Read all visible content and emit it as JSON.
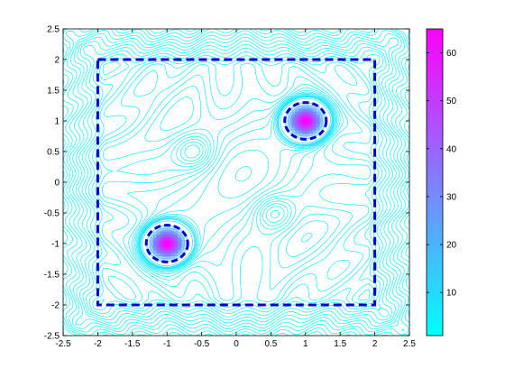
{
  "chart_data": {
    "type": "contour",
    "title": "",
    "xlabel": "",
    "ylabel": "",
    "xlim": [
      -2.5,
      2.5
    ],
    "ylim": [
      -2.5,
      2.5
    ],
    "xticks": [
      "-2.5",
      "-2",
      "-1.5",
      "-1",
      "-0.5",
      "0",
      "0.5",
      "1",
      "1.5",
      "2",
      "2.5"
    ],
    "yticks": [
      "-2.5",
      "-2",
      "-1.5",
      "-1",
      "-0.5",
      "0",
      "0.5",
      "1",
      "1.5",
      "2",
      "2.5"
    ],
    "grid": false,
    "colormap": {
      "low_color": "#00ffff",
      "high_color": "#ff00ff"
    },
    "colorbar": {
      "range": [
        1,
        65
      ],
      "ticks": [
        "10",
        "20",
        "30",
        "40",
        "50",
        "60"
      ]
    },
    "peaks": [
      {
        "x": -1,
        "y": -1,
        "value": 65
      },
      {
        "x": 1,
        "y": 1,
        "value": 65
      }
    ],
    "minima": [
      {
        "x": -0.6,
        "y": 0.5
      },
      {
        "x": 0.55,
        "y": -0.5
      }
    ],
    "overlays": {
      "box": {
        "x": [
          -2,
          2
        ],
        "y": [
          -2,
          2
        ],
        "style": "dashed",
        "color": "#0000cc"
      },
      "circles": [
        {
          "cx": -1,
          "cy": -1,
          "r": 0.3,
          "style": "dashed",
          "color": "#0000cc"
        },
        {
          "cx": 1,
          "cy": 1,
          "r": 0.3,
          "style": "dashed",
          "color": "#0000cc"
        }
      ]
    }
  }
}
